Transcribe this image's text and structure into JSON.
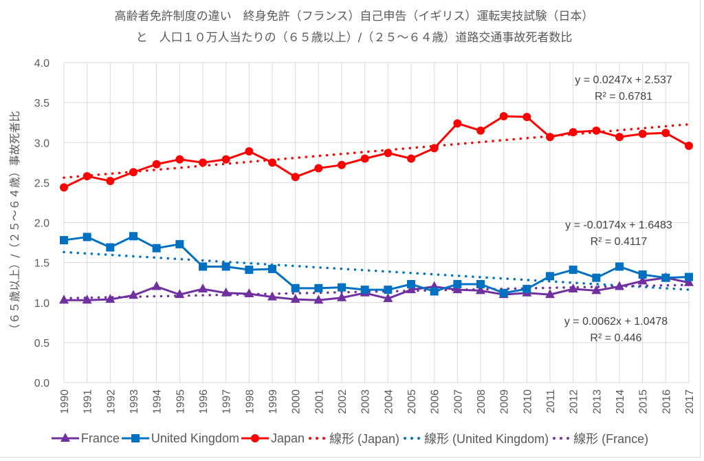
{
  "chart_data": {
    "type": "line",
    "title_line1": "高齢者免許制度の違い　終身免許（フランス）自己申告（イギリス）運転実技試験（日本）",
    "title_line2": "と　人口１０万人当たりの（６５歳以上）/（２５～６４歳）道路交通事故死者数比",
    "xlabel": "",
    "ylabel": "（６５歳以上）/（２５～６４歳）事故死者比",
    "ylim": [
      0,
      4.0
    ],
    "yticks": [
      "0.0",
      "0.5",
      "1.0",
      "1.5",
      "2.0",
      "2.5",
      "3.0",
      "3.5",
      "4.0"
    ],
    "grid": true,
    "legend_position": "bottom",
    "categories": [
      "1990",
      "1991",
      "1992",
      "1993",
      "1994",
      "1995",
      "1996",
      "1997",
      "1998",
      "1999",
      "2000",
      "2001",
      "2002",
      "2003",
      "2004",
      "2005",
      "2006",
      "2007",
      "2008",
      "2009",
      "2010",
      "2011",
      "2012",
      "2013",
      "2014",
      "2015",
      "2016",
      "2017"
    ],
    "series": [
      {
        "name": "France",
        "color": "#7030a0",
        "marker": "triangle",
        "values": [
          1.03,
          1.03,
          1.04,
          1.09,
          1.2,
          1.1,
          1.17,
          1.12,
          1.11,
          1.07,
          1.04,
          1.03,
          1.06,
          1.12,
          1.05,
          1.16,
          1.2,
          1.16,
          1.15,
          1.1,
          1.12,
          1.1,
          1.17,
          1.15,
          1.2,
          1.27,
          1.31,
          1.25
        ]
      },
      {
        "name": "United Kingdom",
        "color": "#0070c0",
        "marker": "square",
        "values": [
          1.78,
          1.82,
          1.69,
          1.83,
          1.68,
          1.73,
          1.45,
          1.45,
          1.41,
          1.42,
          1.18,
          1.18,
          1.19,
          1.16,
          1.16,
          1.23,
          1.14,
          1.23,
          1.23,
          1.12,
          1.17,
          1.33,
          1.41,
          1.31,
          1.45,
          1.35,
          1.31,
          1.32
        ]
      },
      {
        "name": "Japan",
        "color": "#ff0000",
        "marker": "circle",
        "values": [
          2.44,
          2.58,
          2.52,
          2.63,
          2.73,
          2.79,
          2.75,
          2.79,
          2.89,
          2.75,
          2.57,
          2.68,
          2.72,
          2.8,
          2.87,
          2.8,
          2.93,
          3.24,
          3.15,
          3.33,
          3.32,
          3.07,
          3.13,
          3.15,
          3.07,
          3.11,
          3.12,
          2.96
        ]
      }
    ],
    "trendlines": [
      {
        "name": "線形 (Japan)",
        "series": "Japan",
        "color": "#ff0000",
        "slope": 0.0247,
        "intercept": 2.537,
        "equation": "y = 0.0247x + 2.537",
        "r2": "R² = 0.6781"
      },
      {
        "name": "線形 (United Kingdom)",
        "series": "United Kingdom",
        "color": "#0070c0",
        "slope": -0.0174,
        "intercept": 1.6483,
        "equation": "y = -0.0174x + 1.6483",
        "r2": "R² = 0.4117"
      },
      {
        "name": "線形 (France)",
        "series": "France",
        "color": "#7030a0",
        "slope": 0.0062,
        "intercept": 1.0478,
        "equation": "y = 0.0062x + 1.0478",
        "r2": "R² = 0.446"
      }
    ]
  },
  "legend": {
    "items": [
      {
        "label": "France",
        "kind": "triangle",
        "color": "#7030a0"
      },
      {
        "label": "United Kingdom",
        "kind": "square",
        "color": "#0070c0"
      },
      {
        "label": "Japan",
        "kind": "circle",
        "color": "#ff0000"
      },
      {
        "label": "線形 (Japan)",
        "kind": "dots",
        "color": "#ff0000"
      },
      {
        "label": "線形 (United Kingdom)",
        "kind": "dots",
        "color": "#0070c0"
      },
      {
        "label": "線形 (France)",
        "kind": "dots",
        "color": "#7030a0"
      }
    ]
  }
}
